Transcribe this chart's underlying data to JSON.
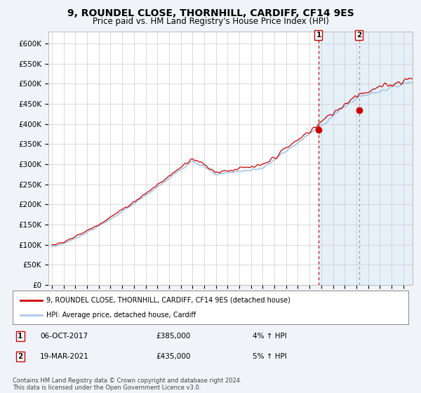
{
  "title": "9, ROUNDEL CLOSE, THORNHILL, CARDIFF, CF14 9ES",
  "subtitle": "Price paid vs. HM Land Registry's House Price Index (HPI)",
  "title_fontsize": 10,
  "subtitle_fontsize": 8.5,
  "ylabel_ticks": [
    "£0",
    "£50K",
    "£100K",
    "£150K",
    "£200K",
    "£250K",
    "£300K",
    "£350K",
    "£400K",
    "£450K",
    "£500K",
    "£550K",
    "£600K"
  ],
  "ytick_values": [
    0,
    50000,
    100000,
    150000,
    200000,
    250000,
    300000,
    350000,
    400000,
    450000,
    500000,
    550000,
    600000
  ],
  "ylim": [
    0,
    630000
  ],
  "xlim_start": 1994.7,
  "xlim_end": 2025.8,
  "xtick_years": [
    1995,
    1996,
    1997,
    1998,
    1999,
    2000,
    2001,
    2002,
    2003,
    2004,
    2005,
    2006,
    2007,
    2008,
    2009,
    2010,
    2011,
    2012,
    2013,
    2014,
    2015,
    2016,
    2017,
    2018,
    2019,
    2020,
    2021,
    2022,
    2023,
    2024,
    2025
  ],
  "hpi_color": "#aac8e8",
  "price_color": "#cc0000",
  "marker_color": "#cc0000",
  "vline1_color": "#cc0000",
  "vline2_color": "#999999",
  "shade_color": "#daeaf6",
  "point1_x": 2017.77,
  "point1_y": 385000,
  "point2_x": 2021.22,
  "point2_y": 435000,
  "legend_label1": "9, ROUNDEL CLOSE, THORNHILL, CARDIFF, CF14 9ES (detached house)",
  "legend_label2": "HPI: Average price, detached house, Cardiff",
  "annotation1_label": "1",
  "annotation2_label": "2",
  "annotation1_date": "06-OCT-2017",
  "annotation1_price": "£385,000",
  "annotation1_hpi": "4% ↑ HPI",
  "annotation2_date": "19-MAR-2021",
  "annotation2_price": "£435,000",
  "annotation2_hpi": "5% ↑ HPI",
  "footnote": "Contains HM Land Registry data © Crown copyright and database right 2024.\nThis data is licensed under the Open Government Licence v3.0.",
  "bg_color": "#f0f4f8",
  "plot_bg_color": "#ffffff",
  "grid_color": "#cccccc"
}
